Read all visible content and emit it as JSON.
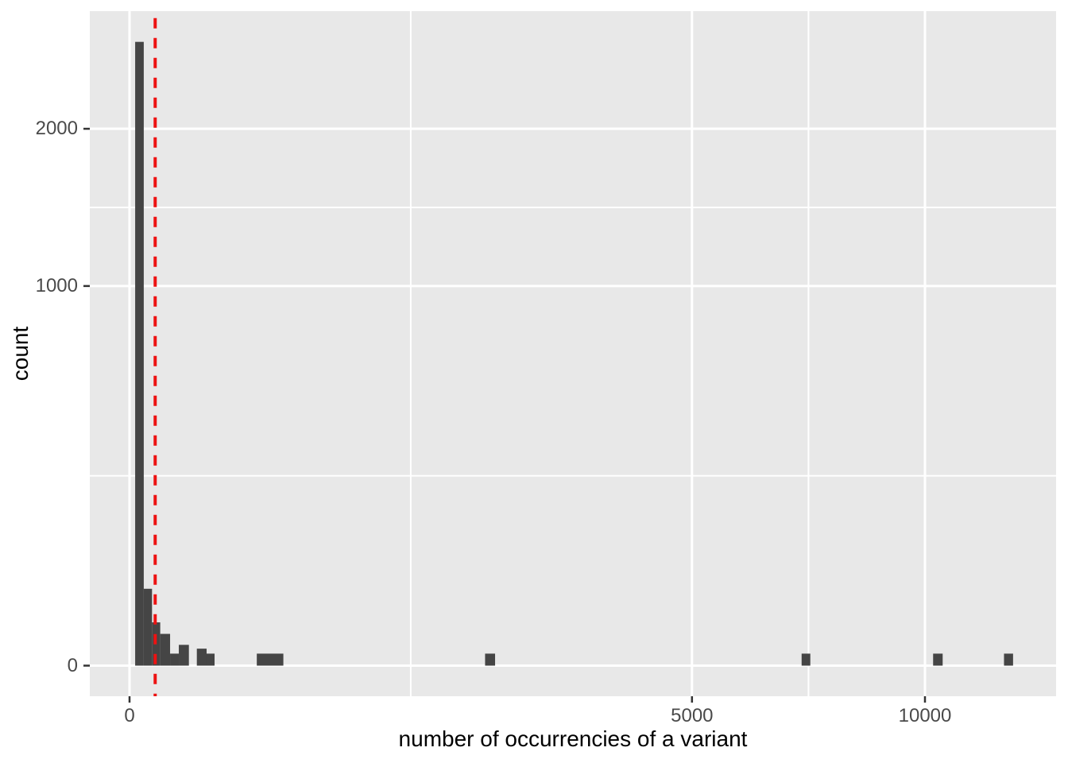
{
  "chart_data": {
    "type": "bar",
    "subtype": "histogram",
    "title": "",
    "xlabel": "number of occurrencies of a variant",
    "ylabel": "count",
    "x_scale": "sqrt",
    "y_scale": "sqrt",
    "xlim": [
      0,
      13600
    ],
    "ylim": [
      0,
      2720
    ],
    "grid": "on",
    "legend_position": "none",
    "x_ticks": [
      {
        "value": 0,
        "label": "0"
      },
      {
        "value": 5000,
        "label": "5000"
      },
      {
        "value": 10000,
        "label": "10000"
      }
    ],
    "y_ticks": [
      {
        "value": 0,
        "label": "0"
      },
      {
        "value": 1000,
        "label": "1000"
      },
      {
        "value": 2000,
        "label": "2000"
      }
    ],
    "bars": [
      {
        "x0": 0.5,
        "x1": 3.2,
        "count": 2700
      },
      {
        "x0": 3.2,
        "x1": 8.0,
        "count": 41
      },
      {
        "x0": 8.0,
        "x1": 14.9,
        "count": 13
      },
      {
        "x0": 14.9,
        "x1": 26.0,
        "count": 7
      },
      {
        "x0": 26.0,
        "x1": 38.4,
        "count": 1
      },
      {
        "x0": 38.4,
        "x1": 55.7,
        "count": 3
      },
      {
        "x0": 71.6,
        "x1": 93.9,
        "count": 2
      },
      {
        "x0": 93.9,
        "x1": 114.3,
        "count": 1
      },
      {
        "x0": 256,
        "x1": 374,
        "count": 1
      },
      {
        "x0": 1998,
        "x1": 2112,
        "count": 1
      },
      {
        "x0": 7139,
        "x1": 7325,
        "count": 1
      },
      {
        "x0": 10206,
        "x1": 10450,
        "count": 1
      },
      {
        "x0": 12086,
        "x1": 12338,
        "count": 1
      }
    ],
    "vline": {
      "value": 10.4,
      "color": "#ed1212",
      "style": "dashed"
    },
    "colors": {
      "bar_fill": "#454545",
      "panel_bg": "#e8e8e8",
      "grid_major": "#ffffff",
      "grid_minor": "#ffffff",
      "tick_mark": "#333333",
      "tick_label": "#4a4a4a",
      "axis_title": "#000000",
      "vline_red": "#ed1212"
    }
  }
}
